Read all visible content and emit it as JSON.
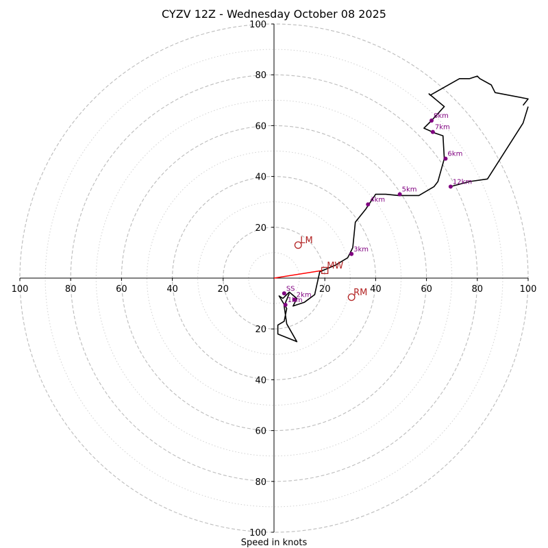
{
  "chart_data": {
    "type": "hodograph",
    "title": "CYZV 12Z - Wednesday October 08 2025",
    "xlabel": "Speed in knots",
    "units": "knots",
    "range": [
      -100,
      100
    ],
    "ring_major": [
      20,
      40,
      60,
      80,
      100
    ],
    "ring_minor": [
      10,
      30,
      50,
      70,
      90
    ],
    "x_ticks": [
      {
        "v": -100,
        "label": "100"
      },
      {
        "v": -80,
        "label": "80"
      },
      {
        "v": -60,
        "label": "60"
      },
      {
        "v": -40,
        "label": "40"
      },
      {
        "v": -20,
        "label": "20"
      },
      {
        "v": 20,
        "label": "20"
      },
      {
        "v": 40,
        "label": "40"
      },
      {
        "v": 60,
        "label": "60"
      },
      {
        "v": 80,
        "label": "80"
      },
      {
        "v": 100,
        "label": "100"
      }
    ],
    "y_ticks": [
      {
        "v": 100,
        "label": "100"
      },
      {
        "v": 80,
        "label": "80"
      },
      {
        "v": 60,
        "label": "60"
      },
      {
        "v": 40,
        "label": "40"
      },
      {
        "v": 20,
        "label": "20"
      },
      {
        "v": -20,
        "label": "20"
      },
      {
        "v": -40,
        "label": "40"
      },
      {
        "v": -60,
        "label": "60"
      },
      {
        "v": -80,
        "label": "80"
      },
      {
        "v": -100,
        "label": "100"
      }
    ],
    "trace": [
      [
        3.5,
        -8
      ],
      [
        6,
        -5.5
      ],
      [
        9,
        -8
      ],
      [
        7.5,
        -11
      ],
      [
        12,
        -9.5
      ],
      [
        16,
        -6.5
      ],
      [
        18,
        2.5
      ],
      [
        24,
        5
      ],
      [
        29,
        8
      ],
      [
        31,
        12
      ],
      [
        32,
        22
      ],
      [
        36,
        27
      ],
      [
        40,
        33
      ],
      [
        44,
        33
      ],
      [
        49,
        32.5
      ],
      [
        57,
        32.5
      ],
      [
        63,
        36
      ],
      [
        64.5,
        38
      ],
      [
        67,
        47
      ],
      [
        66.5,
        56
      ],
      [
        63.5,
        57
      ],
      [
        59,
        59
      ],
      [
        62,
        62
      ],
      [
        67,
        67.5
      ],
      [
        61,
        72.5
      ],
      [
        61.5,
        72
      ],
      [
        73,
        78.5
      ],
      [
        77,
        78.5
      ],
      [
        80,
        79.5
      ],
      [
        81,
        78.5
      ],
      [
        85.5,
        76
      ],
      [
        87,
        74
      ],
      [
        87.5,
        73
      ],
      [
        87,
        73
      ],
      [
        87.5,
        73
      ],
      [
        87,
        73.5
      ],
      [
        87,
        73.5
      ],
      [
        87,
        72.5
      ],
      [
        88,
        72.5
      ],
      [
        100,
        70.5
      ],
      [
        98,
        68
      ],
      [
        97,
        68
      ],
      [
        100,
        67.5
      ],
      [
        98,
        61
      ],
      [
        84,
        39
      ],
      [
        77,
        38
      ],
      [
        69.5,
        36
      ],
      [
        70,
        36.5
      ],
      [
        84,
        39
      ],
      [
        85,
        42
      ],
      [
        62,
        62
      ],
      [
        62,
        62
      ],
      [
        61.5,
        62.5
      ],
      [
        61.5,
        62.5
      ],
      [
        62.5,
        62.5
      ],
      [
        62.5,
        62.5
      ],
      [
        61.5,
        63.5
      ],
      [
        61,
        64
      ],
      [
        61.5,
        65.5
      ],
      [
        64.5,
        66.5
      ],
      [
        61,
        73
      ],
      [
        62.5,
        73.5
      ],
      [
        62.5,
        75
      ],
      [
        65,
        76.5
      ]
    ],
    "trace_main": [
      [
        3.5,
        -8
      ],
      [
        6,
        -5.5
      ],
      [
        9,
        -8
      ],
      [
        7.5,
        -11
      ],
      [
        12,
        -9.5
      ],
      [
        16,
        -6.5
      ],
      [
        18,
        2.5
      ],
      [
        24,
        5
      ],
      [
        29,
        8
      ],
      [
        31,
        12
      ],
      [
        32,
        22
      ],
      [
        36,
        27
      ],
      [
        40,
        33
      ],
      [
        44,
        33
      ],
      [
        49,
        32.5
      ],
      [
        57,
        32.5
      ],
      [
        63,
        36
      ],
      [
        64.5,
        38
      ],
      [
        67,
        47
      ],
      [
        66.5,
        56
      ],
      [
        63.5,
        57
      ],
      [
        59,
        59
      ],
      [
        62,
        62
      ],
      [
        67,
        67.5
      ],
      [
        61,
        72.5
      ],
      [
        61.5,
        72
      ],
      [
        73,
        78.5
      ],
      [
        77,
        78.5
      ],
      [
        80,
        79.5
      ],
      [
        81,
        78.5
      ],
      [
        85.5,
        76
      ],
      [
        87,
        73
      ],
      [
        100,
        70.5
      ],
      [
        98,
        68
      ]
    ],
    "trace_second": [
      [
        100,
        67.5
      ],
      [
        98,
        61
      ],
      [
        84,
        39
      ],
      [
        77,
        38
      ],
      [
        69.5,
        36
      ]
    ],
    "trace_low": [
      [
        3.5,
        -8
      ],
      [
        2,
        -7
      ],
      [
        5,
        -12
      ],
      [
        4,
        -17
      ],
      [
        1.5,
        -18.5
      ],
      [
        1.5,
        -22
      ],
      [
        9,
        -25
      ],
      [
        5,
        -18
      ],
      [
        4,
        -11
      ],
      [
        6,
        -6
      ]
    ],
    "height_markers": [
      {
        "label": "SS",
        "u": 4,
        "v": -6
      },
      {
        "label": "1km",
        "u": 4.5,
        "v": -10.5
      },
      {
        "label": "2km",
        "u": 8,
        "v": -8.5
      },
      {
        "label": "3km",
        "u": 30.5,
        "v": 9.5
      },
      {
        "label": "4km",
        "u": 37,
        "v": 29
      },
      {
        "label": "5km",
        "u": 49.5,
        "v": 33
      },
      {
        "label": "6km",
        "u": 67.5,
        "v": 47
      },
      {
        "label": "7km",
        "u": 62.5,
        "v": 57.5
      },
      {
        "label": "8km",
        "u": 62,
        "v": 62
      },
      {
        "label": "12km",
        "u": 69.5,
        "v": 36
      }
    ],
    "storm_motion": [
      {
        "label": "LM",
        "u": 9.5,
        "v": 13,
        "symbol": "circle"
      },
      {
        "label": "RM",
        "u": 30.5,
        "v": -7.5,
        "symbol": "circle"
      },
      {
        "label": "MW",
        "u": 20,
        "v": 3,
        "symbol": "square"
      }
    ],
    "shear_vector": {
      "from": [
        0,
        0
      ],
      "to": [
        19,
        3
      ]
    },
    "colors": {
      "trace": "#000000",
      "marker": "#800080",
      "motion": "#b22222",
      "shear": "#ff0000",
      "ring": "#bbbbbb",
      "ring_minor": "#d0d0d0",
      "axis": "#000000"
    }
  }
}
